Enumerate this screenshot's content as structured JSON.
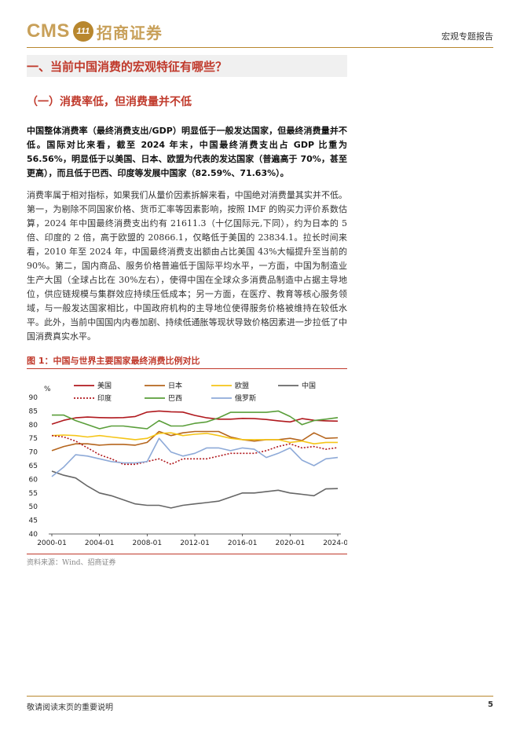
{
  "header": {
    "logo_text": "CMS",
    "logo_badge": "111",
    "logo_cn": "招商证券",
    "report_type": "宏观专题报告"
  },
  "section": {
    "title": "一、当前中国消费的宏观特征有哪些？",
    "subtitle": "（一）消费率低，但消费量并不低"
  },
  "paragraphs": {
    "p1": "中国整体消费率（最终消费支出/GDP）明显低于一般发达国家，但最终消费量并不低。国际对比来看，截至 2024 年末，中国最终消费支出占 GDP 比重为 56.56%，明显低于以美国、日本、欧盟为代表的发达国家（普遍高于 70%，甚至更高），而且低于巴西、印度等发展中国家（82.59%、71.63%）。",
    "p2": "消费率属于相对指标，如果我们从量价因素拆解来看，中国绝对消费量其实并不低。第一，为剔除不同国家价格、货币汇率等因素影响，按照 IMF 的购买力评价系数估算，2024 年中国最终消费支出约有 21611.3（十亿国际元,下同），约为日本的 5 倍、印度的 2 倍，高于欧盟的 20866.1，仅略低于美国的 23834.1。拉长时间来看，2010 年至 2024 年，中国最终消费支出额由占比美国 43%大幅提升至当前的 90%。第二，国内商品、服务价格普遍低于国际平均水平，一方面，中国为制造业生产大国（全球占比在 30%左右），使得中国在全球众多消费品制造中占据主导地位，供应链规模与集群效应持续压低成本；另一方面，在医疗、教育等核心服务领域，与一般发达国家相比，中国政府机构的主导地位使得服务价格被维持在较低水平。此外，当前中国国内内卷加剧、持续低通胀等现状导致价格因素进一步拉低了中国消费真实水平。"
  },
  "figure": {
    "title": "图 1：中国与世界主要国家最终消费比例对比",
    "source": "资料来源：Wind、招商证券"
  },
  "chart_data": {
    "type": "line",
    "title": "",
    "xlabel": "",
    "ylabel": "%",
    "ylim": [
      40,
      90
    ],
    "yticks": [
      40,
      45,
      50,
      55,
      60,
      65,
      70,
      75,
      80,
      85,
      90
    ],
    "x": [
      2000,
      2001,
      2002,
      2003,
      2004,
      2005,
      2006,
      2007,
      2008,
      2009,
      2010,
      2011,
      2012,
      2013,
      2014,
      2015,
      2016,
      2017,
      2018,
      2019,
      2020,
      2021,
      2022,
      2023,
      2024
    ],
    "xtick_labels": [
      "2000-01",
      "2004-01",
      "2008-01",
      "2012-01",
      "2016-01",
      "2020-01",
      "2024-01"
    ],
    "xtick_years": [
      2000,
      2004,
      2008,
      2012,
      2016,
      2020,
      2024
    ],
    "legend_position": "top",
    "series": [
      {
        "name": "美国",
        "color": "#b0191e",
        "dash": "",
        "values": [
          80.2,
          81.6,
          82.5,
          82.8,
          82.6,
          82.5,
          82.6,
          83.0,
          84.6,
          85.0,
          84.7,
          84.6,
          83.4,
          82.5,
          82.0,
          82.0,
          82.3,
          82.2,
          81.9,
          81.4,
          81.0,
          82.2,
          81.6,
          81.4,
          81.3
        ]
      },
      {
        "name": "日本",
        "color": "#b5651d",
        "dash": "",
        "values": [
          70.5,
          72.0,
          73.0,
          73.0,
          72.5,
          72.8,
          72.8,
          72.5,
          73.5,
          77.5,
          76.0,
          77.0,
          77.5,
          77.5,
          77.5,
          75.5,
          74.5,
          74.0,
          74.5,
          74.5,
          75.0,
          74.2,
          77.0,
          75.0,
          75.2
        ]
      },
      {
        "name": "欧盟",
        "color": "#f5c518",
        "dash": "",
        "values": [
          76.0,
          76.2,
          76.0,
          75.5,
          76.0,
          75.5,
          75.0,
          74.5,
          75.0,
          76.8,
          77.0,
          76.0,
          76.5,
          76.8,
          76.0,
          75.0,
          74.5,
          74.5,
          74.5,
          74.5,
          73.5,
          74.0,
          73.0,
          73.5,
          73.5
        ]
      },
      {
        "name": "中国",
        "color": "#666666",
        "dash": "",
        "values": [
          63.0,
          61.5,
          60.5,
          57.5,
          55.0,
          54.0,
          52.5,
          51.0,
          50.5,
          50.5,
          49.5,
          50.5,
          51.0,
          51.5,
          52.0,
          53.5,
          55.0,
          55.0,
          55.5,
          56.0,
          55.0,
          54.5,
          54.0,
          56.5,
          56.6
        ]
      },
      {
        "name": "印度",
        "color": "#b0191e",
        "dash": "2,2",
        "values": [
          76.0,
          75.5,
          74.0,
          71.5,
          69.0,
          67.5,
          65.5,
          65.5,
          66.5,
          67.5,
          65.5,
          67.5,
          67.5,
          67.5,
          68.5,
          69.5,
          69.5,
          69.5,
          70.5,
          72.0,
          73.0,
          71.5,
          72.0,
          71.0,
          71.6
        ]
      },
      {
        "name": "巴西",
        "color": "#5a9e3a",
        "dash": "",
        "values": [
          83.5,
          83.5,
          81.5,
          80.0,
          78.5,
          79.5,
          79.5,
          79.0,
          78.5,
          81.5,
          79.5,
          79.5,
          80.5,
          81.0,
          82.5,
          84.5,
          84.5,
          84.5,
          84.5,
          85.0,
          83.0,
          80.0,
          81.5,
          82.0,
          82.6
        ]
      },
      {
        "name": "俄罗斯",
        "color": "#8eaad8",
        "dash": "",
        "values": [
          61.0,
          64.5,
          69.0,
          68.5,
          67.5,
          66.5,
          66.0,
          66.0,
          66.5,
          75.0,
          70.0,
          68.5,
          69.5,
          71.5,
          71.5,
          70.5,
          71.5,
          71.0,
          68.0,
          69.5,
          71.5,
          67.0,
          65.0,
          67.5,
          68.0
        ]
      }
    ]
  },
  "footer": {
    "disclaimer": "敬请阅读末页的重要说明",
    "page": "5"
  }
}
